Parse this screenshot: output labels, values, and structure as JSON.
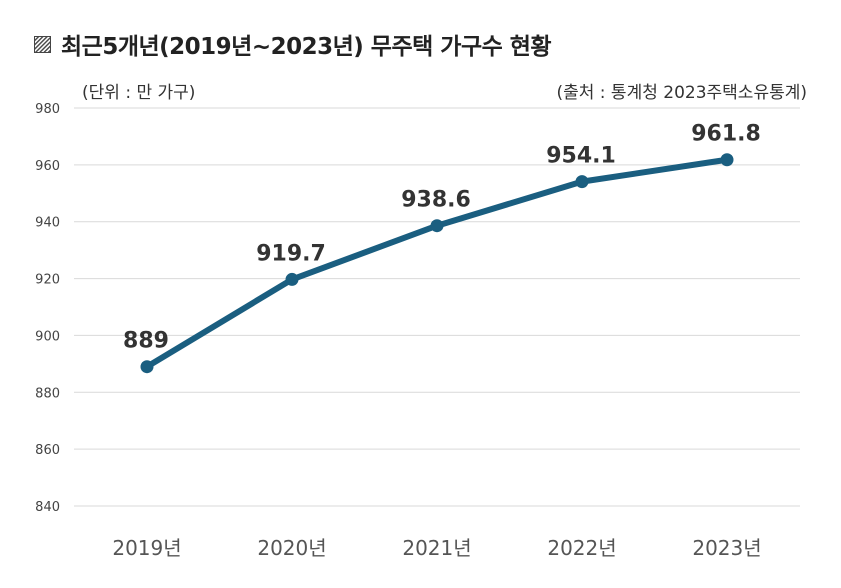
{
  "header": {
    "title": "최근5개년(2019년~2023년) 무주택 가구수 현황",
    "icon": "hatched-square-icon",
    "unit_label": "(단위 : 만 가구)",
    "source_label": "(출처 : 통계청 2023주택소유통계)"
  },
  "colors": {
    "line": "#1a5e80",
    "grid": "#d9d9d9"
  },
  "chart_data": {
    "type": "line",
    "title": "최근5개년(2019년~2023년) 무주택 가구수 현황",
    "xlabel": "",
    "ylabel": "",
    "categories": [
      "2019년",
      "2020년",
      "2021년",
      "2022년",
      "2023년"
    ],
    "series": [
      {
        "name": "무주택 가구수",
        "values": [
          889,
          919.7,
          938.6,
          954.1,
          961.8
        ]
      }
    ],
    "data_labels": [
      "889",
      "919.7",
      "938.6",
      "954.1",
      "961.8"
    ],
    "ylim": [
      840,
      980
    ],
    "yticks": [
      840,
      860,
      880,
      900,
      920,
      940,
      960,
      980
    ],
    "grid": true,
    "legend": "none"
  }
}
